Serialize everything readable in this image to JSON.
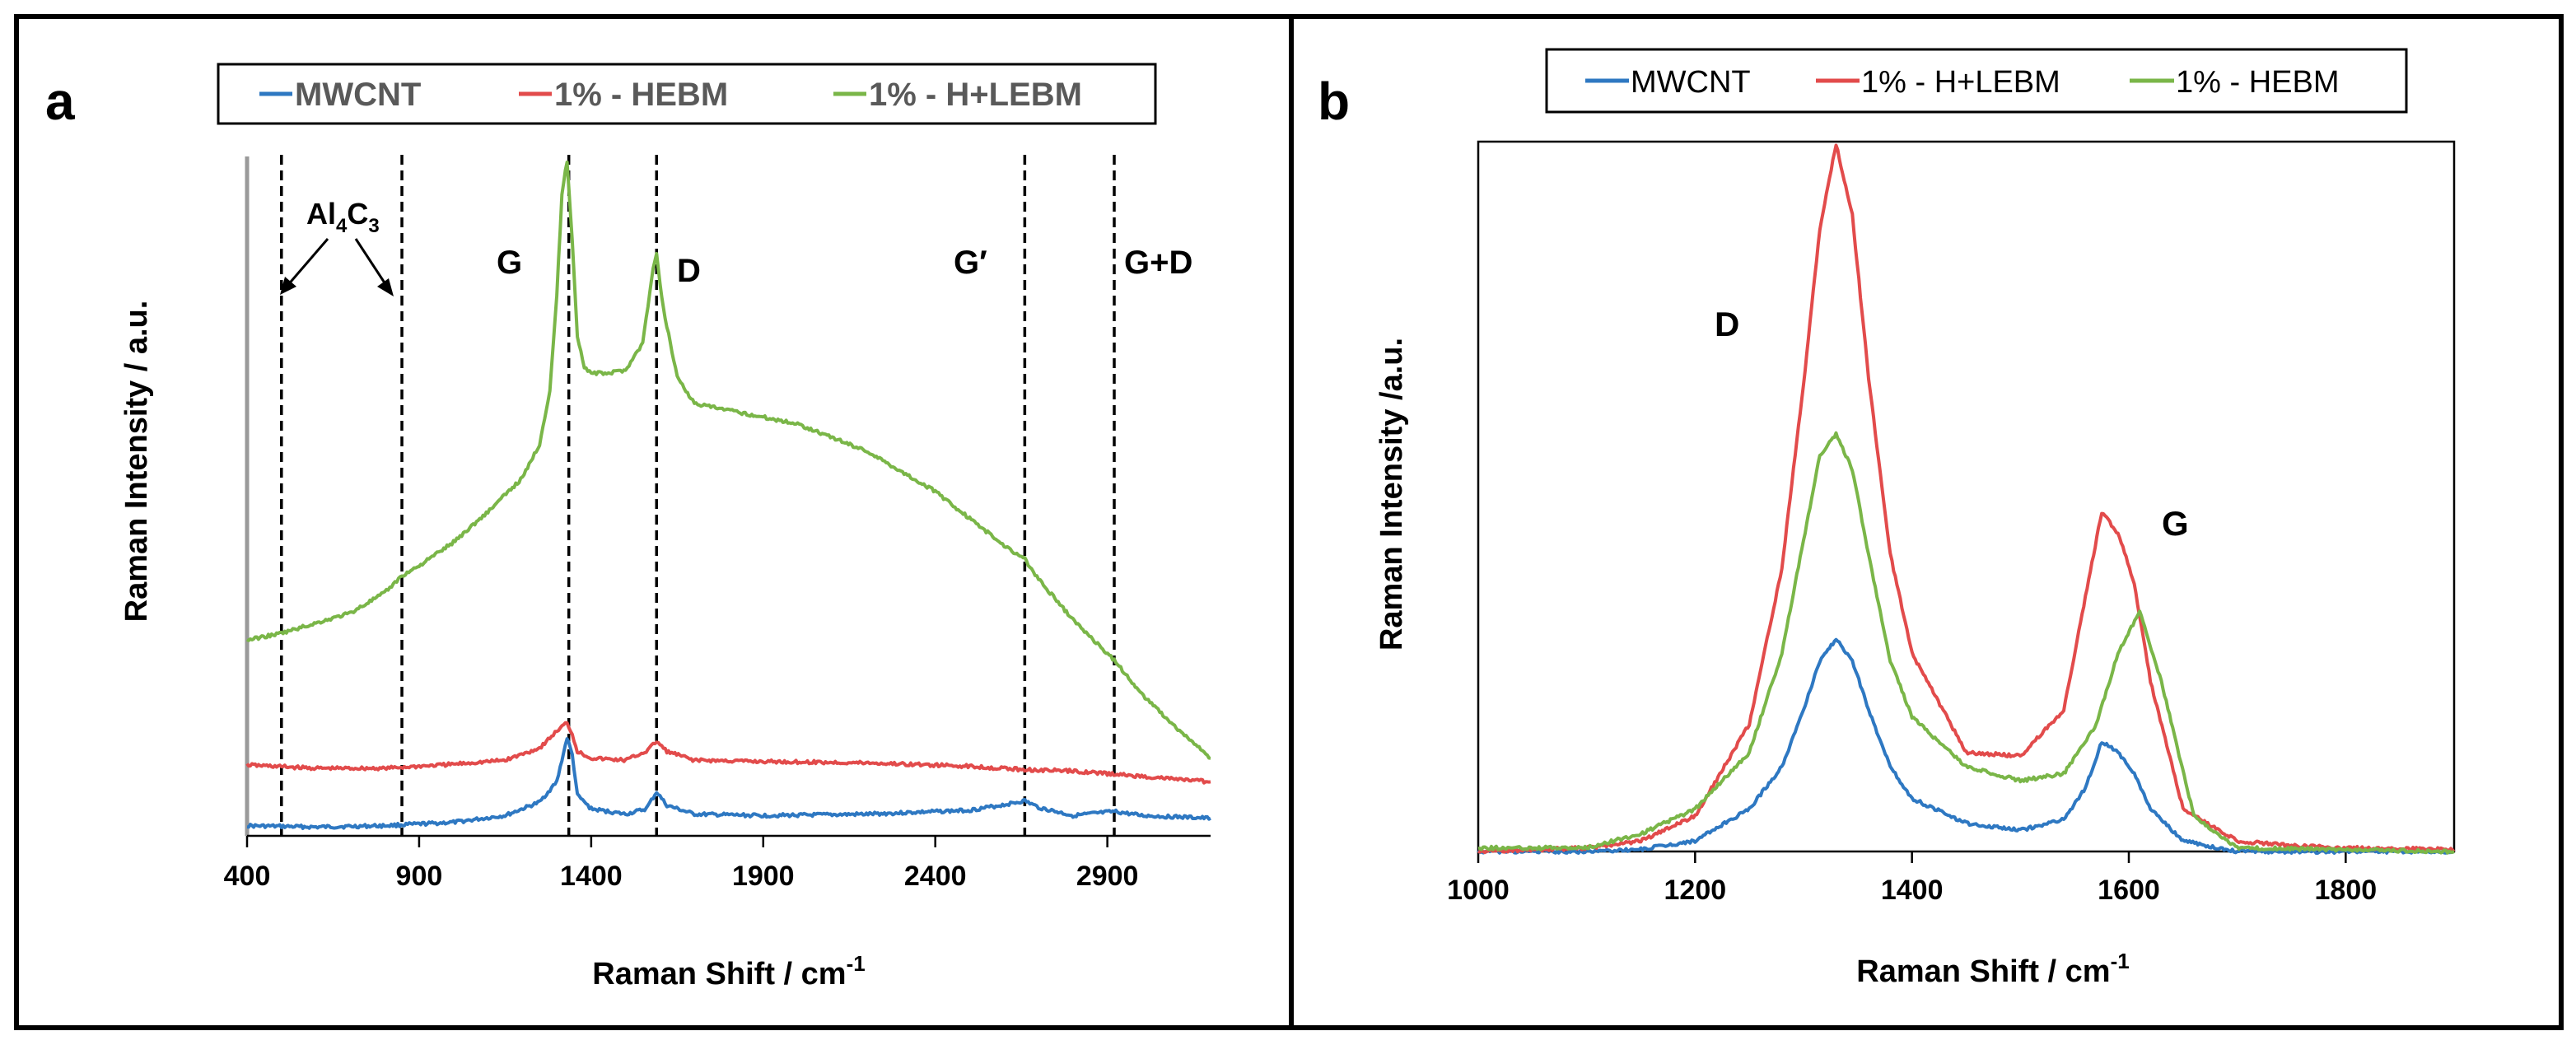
{
  "figure": {
    "panels": [
      {
        "panel_label": "a",
        "legend": [
          "MWCNT",
          "1% - HEBM",
          "1% - H+LEBM"
        ]
      },
      {
        "panel_label": "b",
        "legend": [
          "MWCNT",
          "1% - H+LEBM",
          "1% - HEBM"
        ]
      }
    ]
  },
  "chart_data": [
    {
      "type": "line",
      "panel": "a",
      "title": "",
      "xlabel": "Raman Shift / cm",
      "xlabel_superscript": "-1",
      "ylabel": "Raman Intensity / a.u.",
      "xlim": [
        400,
        3200
      ],
      "ylim": [
        0,
        100
      ],
      "xticks": [
        400,
        900,
        1400,
        1900,
        2400,
        2900
      ],
      "grid": false,
      "legend_position": "top",
      "colors": {
        "MWCNT": "#2e78c2",
        "1% - HEBM": "#e24b4b",
        "1% - H+LEBM": "#7ab648"
      },
      "series": [
        {
          "name": "MWCNT",
          "color": "#2e78c2",
          "x": [
            400,
            600,
            800,
            1000,
            1150,
            1250,
            1300,
            1330,
            1345,
            1360,
            1400,
            1500,
            1560,
            1590,
            1620,
            1700,
            1900,
            2200,
            2500,
            2600,
            2660,
            2700,
            2800,
            2920,
            3000,
            3200
          ],
          "y": [
            1.5,
            1.3,
            1.5,
            2.0,
            3.0,
            5.0,
            8.0,
            14.5,
            12.0,
            6.0,
            4.0,
            3.2,
            4.0,
            6.5,
            4.5,
            3.2,
            3.0,
            3.2,
            3.8,
            4.6,
            5.2,
            4.2,
            3.0,
            3.6,
            3.0,
            2.6
          ]
        },
        {
          "name": "1% - HEBM",
          "color": "#e24b4b",
          "x": [
            400,
            600,
            800,
            1000,
            1150,
            1250,
            1300,
            1330,
            1345,
            1360,
            1400,
            1500,
            1560,
            1590,
            1620,
            1700,
            1900,
            2200,
            2500,
            2660,
            2800,
            3000,
            3200
          ],
          "y": [
            10.5,
            10.0,
            10.0,
            10.6,
            11.2,
            13.0,
            15.5,
            16.8,
            15.0,
            12.5,
            11.5,
            11.2,
            12.5,
            14.0,
            12.5,
            11.2,
            11.0,
            10.8,
            10.3,
            9.8,
            9.6,
            8.8,
            8.0
          ]
        },
        {
          "name": "1% - H+LEBM",
          "color": "#7ab648",
          "x": [
            400,
            500,
            600,
            700,
            800,
            850,
            900,
            1000,
            1100,
            1200,
            1250,
            1280,
            1300,
            1315,
            1330,
            1345,
            1360,
            1380,
            1400,
            1450,
            1500,
            1550,
            1580,
            1590,
            1610,
            1650,
            1700,
            1800,
            1900,
            2000,
            2100,
            2200,
            2300,
            2400,
            2500,
            2600,
            2660,
            2700,
            2800,
            2920,
            3000,
            3100,
            3200
          ],
          "y": [
            29.0,
            30.0,
            31.5,
            33.0,
            36.0,
            38.5,
            40.0,
            43.5,
            48.0,
            53.0,
            58.0,
            66.0,
            80.0,
            95.0,
            100.0,
            88.0,
            74.0,
            69.5,
            68.5,
            68.5,
            69.0,
            73.0,
            84.0,
            86.0,
            78.0,
            68.0,
            64.0,
            63.0,
            62.0,
            61.0,
            59.0,
            57.0,
            54.0,
            51.0,
            47.0,
            43.0,
            41.0,
            38.0,
            32.0,
            26.0,
            21.0,
            16.0,
            11.5
          ]
        }
      ],
      "vertical_lines": [
        500,
        850,
        1335,
        1590,
        2660,
        2920
      ],
      "annotations": [
        {
          "text": "Al",
          "sub": "4",
          "text2": "C",
          "sub2": "3"
        },
        {
          "text": "G"
        },
        {
          "text": "D"
        },
        {
          "text": "G′"
        },
        {
          "text": "G+D"
        }
      ]
    },
    {
      "type": "line",
      "panel": "b",
      "title": "",
      "xlabel": "Raman Shift / cm",
      "xlabel_superscript": "-1",
      "ylabel": "Raman Intensity /a.u.",
      "xlim": [
        1000,
        1900
      ],
      "ylim": [
        0,
        100
      ],
      "xticks": [
        1000,
        1200,
        1400,
        1600,
        1800
      ],
      "grid": false,
      "legend_position": "top",
      "colors": {
        "MWCNT": "#2e78c2",
        "1% - H+LEBM": "#e24b4b",
        "1% - HEBM": "#7ab648"
      },
      "series": [
        {
          "name": "MWCNT",
          "color": "#2e78c2",
          "x": [
            1000,
            1100,
            1150,
            1200,
            1250,
            1280,
            1300,
            1315,
            1330,
            1345,
            1360,
            1380,
            1400,
            1450,
            1500,
            1540,
            1560,
            1575,
            1590,
            1605,
            1620,
            1650,
            1700,
            1900
          ],
          "y": [
            0,
            0,
            0.3,
            1.5,
            6.0,
            12.0,
            20.0,
            27.0,
            30.0,
            27.0,
            20.0,
            12.0,
            7.5,
            4.0,
            3.0,
            4.5,
            9.0,
            15.5,
            14.0,
            11.0,
            6.0,
            1.5,
            0,
            0
          ]
        },
        {
          "name": "1% - H+LEBM",
          "color": "#e24b4b",
          "x": [
            1000,
            1100,
            1150,
            1200,
            1250,
            1280,
            1300,
            1315,
            1330,
            1345,
            1360,
            1380,
            1400,
            1450,
            1500,
            1540,
            1560,
            1575,
            1590,
            1605,
            1620,
            1650,
            1700,
            1750,
            1800,
            1900
          ],
          "y": [
            0,
            0.5,
            1.5,
            5.0,
            18.0,
            40.0,
            66.0,
            88.0,
            100.0,
            90.0,
            67.0,
            42.0,
            28.0,
            14.0,
            13.5,
            20.0,
            36.0,
            48.0,
            45.0,
            38.0,
            24.0,
            6.0,
            1.5,
            0.8,
            0.5,
            0.3
          ]
        },
        {
          "name": "1% - HEBM",
          "color": "#7ab648",
          "x": [
            1000,
            1100,
            1150,
            1200,
            1250,
            1280,
            1300,
            1315,
            1330,
            1345,
            1360,
            1380,
            1400,
            1450,
            1500,
            1540,
            1570,
            1590,
            1610,
            1630,
            1660,
            1700,
            1900
          ],
          "y": [
            0.5,
            0.5,
            2.5,
            6.0,
            14.0,
            28.0,
            44.0,
            56.0,
            59.0,
            54.0,
            42.0,
            27.0,
            19.0,
            12.0,
            10.0,
            11.0,
            18.0,
            28.0,
            34.0,
            24.0,
            5.0,
            0.5,
            0
          ]
        }
      ],
      "annotations": [
        {
          "text": "D"
        },
        {
          "text": "G"
        }
      ]
    }
  ]
}
